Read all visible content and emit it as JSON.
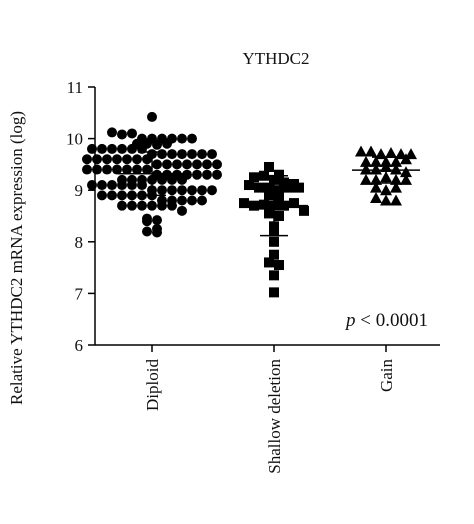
{
  "chart_data": {
    "type": "dot",
    "title": "YTHDC2",
    "y_label": "Relative YTHDC2 mRNA expression (log)",
    "annotation": "p < 0.0001",
    "categories": [
      "Diploid",
      "Shallow deletion",
      "Gain"
    ],
    "ylim": [
      6,
      11
    ],
    "yticks": [
      6,
      7,
      8,
      9,
      10,
      11
    ],
    "groups": [
      {
        "marker": "circle",
        "color": "#000000",
        "mean": 9.32,
        "sd": 0.42,
        "values": [
          10.42,
          10.12,
          10.08,
          10.1,
          10.0,
          10.0,
          10.0,
          10.0,
          10.0,
          10.0,
          9.9,
          9.9,
          9.88,
          9.9,
          9.8,
          9.8,
          9.8,
          9.8,
          9.8,
          9.8,
          9.7,
          9.7,
          9.7,
          9.7,
          9.7,
          9.7,
          9.7,
          9.6,
          9.6,
          9.6,
          9.6,
          9.6,
          9.6,
          9.6,
          9.5,
          9.5,
          9.5,
          9.5,
          9.5,
          9.5,
          9.5,
          9.4,
          9.4,
          9.4,
          9.4,
          9.4,
          9.4,
          9.4,
          9.3,
          9.3,
          9.3,
          9.3,
          9.3,
          9.3,
          9.3,
          9.2,
          9.2,
          9.2,
          9.2,
          9.2,
          9.2,
          9.2,
          9.1,
          9.1,
          9.1,
          9.1,
          9.1,
          9.1,
          9.0,
          9.0,
          9.0,
          9.0,
          9.0,
          9.0,
          9.0,
          8.9,
          8.9,
          8.9,
          8.9,
          8.9,
          8.9,
          8.8,
          8.8,
          8.8,
          8.8,
          8.8,
          8.7,
          8.7,
          8.7,
          8.7,
          8.7,
          8.7,
          8.6,
          8.45,
          8.42,
          8.4,
          8.25,
          8.2,
          8.18
        ]
      },
      {
        "marker": "square",
        "color": "#000000",
        "mean": 8.7,
        "sd": 0.58,
        "values": [
          9.45,
          9.3,
          9.25,
          9.28,
          9.2,
          9.15,
          9.1,
          9.12,
          9.05,
          9.05,
          9.0,
          9.05,
          9.05,
          8.9,
          8.85,
          8.75,
          8.7,
          8.72,
          8.7,
          8.7,
          8.75,
          8.55,
          8.6,
          8.5,
          8.3,
          8.2,
          8.0,
          7.75,
          7.6,
          7.55,
          7.35,
          7.02
        ]
      },
      {
        "marker": "triangle",
        "color": "#000000",
        "mean": 9.39,
        "sd": 0.25,
        "values": [
          9.75,
          9.75,
          9.7,
          9.72,
          9.7,
          9.7,
          9.55,
          9.55,
          9.55,
          9.55,
          9.6,
          9.4,
          9.4,
          9.45,
          9.4,
          9.35,
          9.2,
          9.2,
          9.25,
          9.2,
          9.2,
          9.05,
          9.0,
          9.05,
          8.85,
          8.8,
          8.8
        ]
      }
    ]
  }
}
